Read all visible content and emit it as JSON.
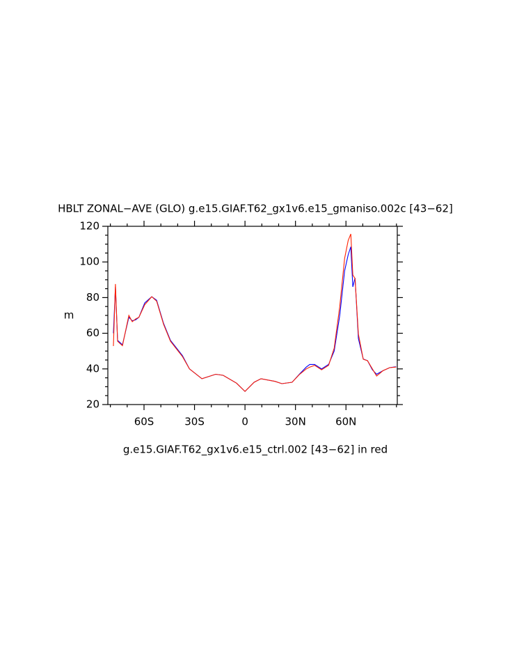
{
  "chart_data": {
    "type": "line",
    "title": "HBLT ZONAL−AVE (GLO) g.e15.GIAF.T62_gx1v6.e15_gmaniso.002c [43−62]",
    "ylabel": "m",
    "caption": "g.e15.GIAF.T62_gx1v6.e15_ctrl.002 [43−62] in red",
    "xlim": [
      -81.5,
      90.5
    ],
    "ylim": [
      20,
      120
    ],
    "xticks": [
      {
        "value": -60,
        "label": "60S"
      },
      {
        "value": -30,
        "label": "30S"
      },
      0,
      {
        "value": 30,
        "label": "30N"
      },
      {
        "value": 60,
        "label": "60N"
      }
    ],
    "yticks": [
      20,
      40,
      60,
      80,
      100,
      120
    ],
    "xminorticks": [
      -80,
      -70,
      -50,
      -40,
      -20,
      -10,
      10,
      20,
      40,
      50,
      70,
      80,
      90
    ],
    "yminorticks": [
      25,
      30,
      35,
      45,
      50,
      55,
      65,
      70,
      75,
      85,
      90,
      95,
      105,
      110,
      115
    ],
    "x": [
      -78.2,
      -77,
      -75.7,
      -72.8,
      -69,
      -67,
      -65,
      -63,
      -59.6,
      -55.4,
      -52.5,
      -48.4,
      -44.3,
      -37.2,
      -33,
      -25.6,
      -17.4,
      -13,
      -5,
      0,
      5.4,
      9.5,
      17.8,
      21.9,
      28,
      32.3,
      36.4,
      38.5,
      41.4,
      45.5,
      49.7,
      53,
      56.3,
      59.2,
      61.3,
      62.9,
      64.1,
      65.4,
      67.4,
      70.3,
      72.8,
      75.7,
      78.2,
      82,
      86,
      89.8
    ],
    "series": [
      {
        "name": "gmaniso",
        "color": "#0000ff",
        "values": [
          60,
          86,
          56,
          53.5,
          69,
          67,
          67.5,
          69,
          77,
          80.5,
          78.5,
          65.5,
          56,
          47.5,
          40,
          34.5,
          37,
          36.4,
          32,
          27.4,
          32.5,
          34.5,
          33,
          31.7,
          32.5,
          37,
          41,
          42.5,
          42.5,
          40,
          42.5,
          50,
          70,
          95,
          104,
          108.5,
          86,
          91,
          57,
          45.5,
          44.6,
          39.5,
          37,
          39,
          40.7,
          41.2
        ]
      },
      {
        "name": "ctrl",
        "color": "#ff2000",
        "values": [
          52.8,
          87.6,
          55.5,
          53,
          70,
          66.5,
          68,
          69,
          76,
          80.5,
          78,
          65,
          55.5,
          47,
          40,
          34.5,
          37,
          36.4,
          32,
          27.4,
          32.5,
          34.5,
          33,
          31.7,
          32.5,
          36.8,
          40,
          41,
          42,
          39.5,
          42,
          51.6,
          75,
          102,
          112,
          115.7,
          92.7,
          90.7,
          59.5,
          45.4,
          44.6,
          40,
          36,
          39,
          40.7,
          41
        ]
      }
    ]
  }
}
